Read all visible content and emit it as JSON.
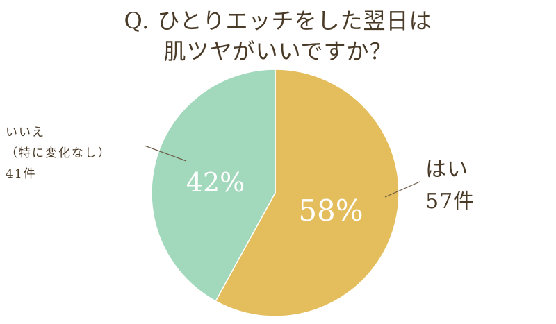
{
  "title": {
    "line1": "Q. ひとりエッチをした翌日は",
    "line2": "肌ツヤがいいですか？"
  },
  "chart_data": {
    "type": "pie",
    "title": "Q. ひとりエッチをした翌日は肌ツヤがいいですか？",
    "slices": [
      {
        "name": "はい",
        "percent": 58,
        "count": "57件",
        "percent_label": "58%",
        "color": "#e4bd5c"
      },
      {
        "name": "いいえ（特に変化なし）",
        "percent": 42,
        "count": "41件",
        "percent_label": "42%",
        "color": "#a2d8bc"
      }
    ]
  },
  "labels": {
    "yes": {
      "line1": "はい",
      "line2": "57件"
    },
    "no": {
      "line1": "いいえ",
      "line2": "（特に変化なし）",
      "line3": "41件"
    }
  }
}
